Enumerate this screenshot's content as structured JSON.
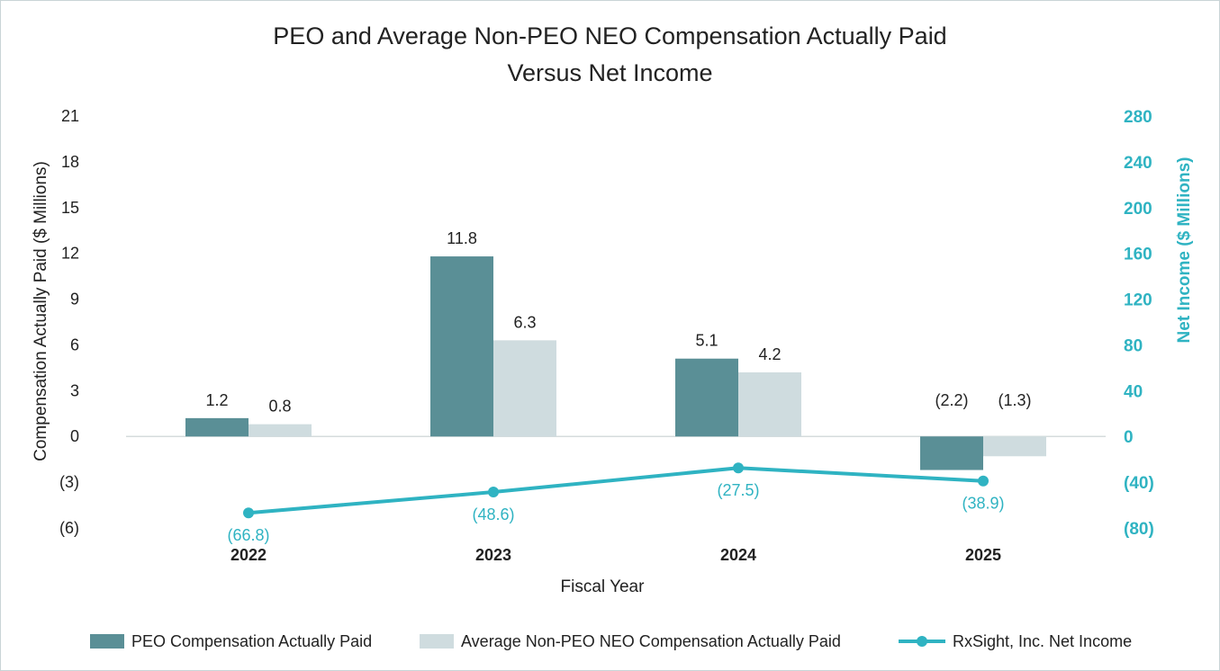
{
  "chart_data": {
    "type": "bar",
    "title": "PEO and Average Non-PEO NEO Compensation Actually Paid",
    "subtitle": "Versus Net Income",
    "categories": [
      "2022",
      "2023",
      "2024",
      "2025"
    ],
    "xlabel": "Fiscal Year",
    "ylabel": "Compensation Actually Paid ($ Millions)",
    "y2label": "Net Income ($ Millions)",
    "ylim": [
      -6,
      21
    ],
    "y2lim": [
      -80,
      280
    ],
    "yticks": [
      "21",
      "18",
      "15",
      "12",
      "9",
      "6",
      "3",
      "0",
      "(3)",
      "(6)"
    ],
    "y2ticks": [
      "280",
      "240",
      "200",
      "160",
      "120",
      "80",
      "40",
      "0",
      "(40)",
      "(80)"
    ],
    "series": [
      {
        "name": "PEO Compensation Actually Paid",
        "kind": "bar",
        "axis": "left",
        "color": "#5a8f96",
        "values": [
          1.2,
          11.8,
          5.1,
          -2.2
        ],
        "labels": [
          "1.2",
          "11.8",
          "5.1",
          "(2.2)"
        ]
      },
      {
        "name": "Average Non-PEO NEO Compensation Actually Paid",
        "kind": "bar",
        "axis": "left",
        "color": "#cfdcdf",
        "values": [
          0.8,
          6.3,
          4.2,
          -1.3
        ],
        "labels": [
          "0.8",
          "6.3",
          "4.2",
          "(1.3)"
        ]
      },
      {
        "name": "RxSight, Inc. Net Income",
        "kind": "line",
        "axis": "right",
        "color": "#2fb3c2",
        "values": [
          -66.8,
          -48.6,
          -27.5,
          -38.9
        ],
        "labels": [
          "(66.8)",
          "(48.6)",
          "(27.5)",
          "(38.9)"
        ]
      }
    ],
    "grid": false,
    "legend_position": "bottom"
  }
}
